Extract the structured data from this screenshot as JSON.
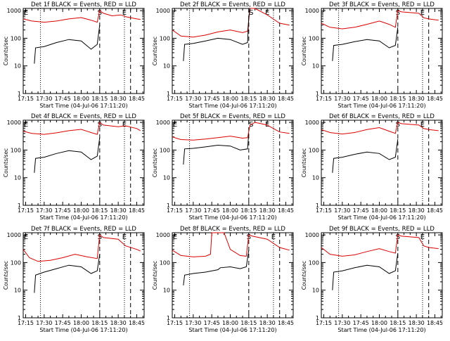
{
  "colors": {
    "events": "#000000",
    "lld": "#dd0000",
    "axis": "#000000",
    "background": "#ffffff"
  },
  "common": {
    "x_ticks": [
      "17:15",
      "17:30",
      "17:45",
      "18:00",
      "18:15",
      "18:30",
      "18:45"
    ],
    "y_ticks": [
      "1",
      "10",
      "100",
      "1000"
    ],
    "ylabel": "Counts/sec",
    "xlabel": "Start Time (04-Jul-06 17:11:20)"
  },
  "chart_data": [
    {
      "type": "line",
      "title": "Det 1f BLACK = Events, RED = LLD",
      "ylabel": "Counts/sec",
      "xlabel": "Start Time (04-Jul-06 17:11:20)",
      "xlim": [
        "17:13",
        "18:51"
      ],
      "ylim": [
        1,
        1200
      ],
      "y_scale": "log",
      "markers": {
        "S": "18:15",
        "E": "18:35",
        "E_left": "17:14"
      },
      "dotted_lines": [
        "17:27",
        "18:35"
      ],
      "dashed_lines": [
        "18:15",
        "18:40"
      ],
      "series": [
        {
          "role": "lld",
          "x": [
            "17:13",
            "17:20",
            "17:30",
            "17:40",
            "17:50",
            "18:00",
            "18:08",
            "18:13",
            "18:15",
            "18:18",
            "18:25",
            "18:32",
            "18:36",
            "18:45",
            "18:48"
          ],
          "y": [
            500,
            420,
            380,
            420,
            500,
            560,
            450,
            380,
            1000,
            800,
            650,
            700,
            600,
            500,
            480
          ]
        },
        {
          "role": "events",
          "x": [
            "17:22",
            "17:23",
            "17:30",
            "17:40",
            "17:50",
            "18:00",
            "18:08",
            "18:13",
            "18:15"
          ],
          "y": [
            12,
            45,
            50,
            70,
            90,
            80,
            40,
            60,
            300
          ]
        }
      ]
    },
    {
      "type": "line",
      "title": "Det 2f BLACK = Events, RED = LLD",
      "ylabel": "Counts/sec",
      "xlabel": "Start Time (04-Jul-06 17:11:20)",
      "xlim": [
        "17:13",
        "18:51"
      ],
      "ylim": [
        1,
        1200
      ],
      "y_scale": "log",
      "markers": {
        "S": "18:17",
        "E": "18:30"
      },
      "dotted_lines": [
        "17:27",
        "18:35"
      ],
      "dashed_lines": [
        "18:15",
        "18:40"
      ],
      "series": [
        {
          "role": "lld",
          "x": [
            "17:13",
            "17:20",
            "17:30",
            "17:40",
            "17:50",
            "18:00",
            "18:10",
            "18:14",
            "18:16",
            "18:20",
            "18:30",
            "18:40",
            "18:48"
          ],
          "y": [
            200,
            120,
            110,
            130,
            170,
            200,
            160,
            180,
            1200,
            1200,
            700,
            350,
            300
          ]
        },
        {
          "role": "events",
          "x": [
            "17:22",
            "17:23",
            "17:30",
            "17:40",
            "17:50",
            "18:00",
            "18:10",
            "18:14",
            "18:15",
            "18:16"
          ],
          "y": [
            15,
            60,
            65,
            80,
            100,
            90,
            60,
            70,
            600,
            1200
          ]
        }
      ]
    },
    {
      "type": "line",
      "title": "Det 3f BLACK = Events, RED = LLD",
      "ylabel": "Counts/sec",
      "xlabel": "Start Time (04-Jul-06 17:11:20)",
      "xlim": [
        "17:13",
        "18:51"
      ],
      "ylim": [
        1,
        1200
      ],
      "y_scale": "log",
      "markers": {
        "S": "18:15",
        "E": "18:35"
      },
      "dotted_lines": [
        "17:27",
        "18:35"
      ],
      "dashed_lines": [
        "18:15",
        "18:40"
      ],
      "series": [
        {
          "role": "lld",
          "x": [
            "17:13",
            "17:20",
            "17:30",
            "17:40",
            "17:50",
            "18:00",
            "18:08",
            "18:13",
            "18:15",
            "18:18",
            "18:32",
            "18:36",
            "18:40",
            "18:48"
          ],
          "y": [
            350,
            250,
            220,
            250,
            320,
            420,
            320,
            250,
            1000,
            900,
            800,
            550,
            500,
            450
          ]
        },
        {
          "role": "events",
          "x": [
            "17:22",
            "17:23",
            "17:30",
            "17:40",
            "17:50",
            "18:00",
            "18:08",
            "18:13",
            "18:15"
          ],
          "y": [
            15,
            55,
            60,
            75,
            90,
            80,
            45,
            55,
            250
          ]
        }
      ]
    },
    {
      "type": "line",
      "title": "Det 4f BLACK = Events, RED = LLD",
      "ylabel": "Counts/sec",
      "xlabel": "Start Time (04-Jul-06 17:11:20)",
      "xlim": [
        "17:13",
        "18:51"
      ],
      "ylim": [
        1,
        1200
      ],
      "y_scale": "log",
      "markers": {
        "S": "18:15",
        "E": "18:35",
        "E_left": "17:14"
      },
      "dotted_lines": [
        "17:27",
        "18:35"
      ],
      "dashed_lines": [
        "18:15",
        "18:40"
      ],
      "series": [
        {
          "role": "lld",
          "x": [
            "17:13",
            "17:20",
            "17:30",
            "17:40",
            "17:50",
            "18:00",
            "18:08",
            "18:13",
            "18:15",
            "18:18",
            "18:30",
            "18:36",
            "18:45",
            "18:48"
          ],
          "y": [
            480,
            400,
            370,
            420,
            500,
            560,
            430,
            370,
            1000,
            800,
            700,
            750,
            600,
            500
          ]
        },
        {
          "role": "events",
          "x": [
            "17:22",
            "17:23",
            "17:30",
            "17:40",
            "17:50",
            "18:00",
            "18:08",
            "18:13",
            "18:15"
          ],
          "y": [
            15,
            50,
            55,
            75,
            95,
            85,
            45,
            60,
            280
          ]
        }
      ]
    },
    {
      "type": "line",
      "title": "Det 5f BLACK = Events, RED = LLD",
      "ylabel": "Counts/sec",
      "xlabel": "Start Time (04-Jul-06 17:11:20)",
      "xlim": [
        "17:13",
        "18:51"
      ],
      "ylim": [
        1,
        1200
      ],
      "y_scale": "log",
      "markers": {
        "S": "18:17",
        "E": "18:30",
        "E_left": "17:14"
      },
      "dotted_lines": [
        "17:27",
        "18:35"
      ],
      "dashed_lines": [
        "18:15",
        "18:40"
      ],
      "series": [
        {
          "role": "lld",
          "x": [
            "17:13",
            "17:20",
            "17:30",
            "17:40",
            "17:50",
            "18:00",
            "18:10",
            "18:14",
            "18:16",
            "18:20",
            "18:25",
            "18:30",
            "18:40",
            "18:48"
          ],
          "y": [
            300,
            240,
            230,
            250,
            280,
            320,
            270,
            280,
            800,
            1000,
            900,
            800,
            450,
            400
          ]
        },
        {
          "role": "events",
          "x": [
            "17:22",
            "17:23",
            "17:30",
            "17:40",
            "17:50",
            "18:00",
            "18:08",
            "18:14",
            "18:15"
          ],
          "y": [
            30,
            110,
            115,
            130,
            150,
            140,
            100,
            110,
            400
          ]
        }
      ]
    },
    {
      "type": "line",
      "title": "Det 6f BLACK = Events, RED = LLD",
      "ylabel": "Counts/sec",
      "xlabel": "Start Time (04-Jul-06 17:11:20)",
      "xlim": [
        "17:13",
        "18:51"
      ],
      "ylim": [
        1,
        1200
      ],
      "y_scale": "log",
      "markers": {
        "S": "18:15",
        "E": "18:35"
      },
      "dotted_lines": [
        "17:27",
        "18:35"
      ],
      "dashed_lines": [
        "18:15",
        "18:40"
      ],
      "series": [
        {
          "role": "lld",
          "x": [
            "17:13",
            "17:20",
            "17:30",
            "17:40",
            "17:50",
            "18:00",
            "18:08",
            "18:13",
            "18:15",
            "18:18",
            "18:32",
            "18:36",
            "18:40",
            "18:48"
          ],
          "y": [
            550,
            430,
            380,
            430,
            550,
            650,
            480,
            400,
            1000,
            900,
            800,
            600,
            550,
            500
          ]
        },
        {
          "role": "events",
          "x": [
            "17:22",
            "17:23",
            "17:30",
            "17:40",
            "17:50",
            "18:00",
            "18:08",
            "18:13",
            "18:15"
          ],
          "y": [
            15,
            50,
            55,
            70,
            85,
            75,
            45,
            55,
            250
          ]
        }
      ]
    },
    {
      "type": "line",
      "title": "Det 7f BLACK = Events, RED = LLD",
      "ylabel": "Counts/sec",
      "xlabel": "Start Time (04-Jul-06 17:11:20)",
      "xlim": [
        "17:13",
        "18:51"
      ],
      "ylim": [
        1,
        1200
      ],
      "y_scale": "log",
      "markers": {
        "S": "18:15",
        "E": "18:35",
        "E_left": "17:14"
      },
      "dotted_lines": [
        "17:27",
        "18:35"
      ],
      "dashed_lines": [
        "18:15",
        "18:40"
      ],
      "series": [
        {
          "role": "lld",
          "x": [
            "17:13",
            "17:18",
            "17:25",
            "17:35",
            "17:45",
            "17:55",
            "18:05",
            "18:13",
            "18:15",
            "18:18",
            "18:30",
            "18:36",
            "18:45",
            "18:48"
          ],
          "y": [
            300,
            150,
            110,
            120,
            150,
            200,
            160,
            140,
            1000,
            800,
            700,
            400,
            300,
            260
          ]
        },
        {
          "role": "events",
          "x": [
            "17:22",
            "17:23",
            "17:30",
            "17:40",
            "17:50",
            "18:00",
            "18:08",
            "18:13",
            "18:15"
          ],
          "y": [
            8,
            35,
            45,
            60,
            80,
            70,
            40,
            50,
            200
          ]
        }
      ]
    },
    {
      "type": "line",
      "title": "Det 8f BLACK = Events, RED = LLD",
      "ylabel": "Counts/sec",
      "xlabel": "Start Time (04-Jul-06 17:11:20)",
      "xlim": [
        "17:13",
        "18:51"
      ],
      "ylim": [
        1,
        1200
      ],
      "y_scale": "log",
      "markers": {
        "S": "18:15",
        "E": "18:35",
        "E_left": "17:14"
      },
      "dotted_lines": [
        "17:27",
        "18:35"
      ],
      "dashed_lines": [
        "18:15",
        "18:40"
      ],
      "series": [
        {
          "role": "lld",
          "x": [
            "17:13",
            "17:20",
            "17:30",
            "17:40",
            "17:44",
            "17:45",
            "17:55",
            "18:00",
            "18:08",
            "18:13",
            "18:15",
            "18:18",
            "18:30",
            "18:40",
            "18:48"
          ],
          "y": [
            280,
            180,
            160,
            170,
            200,
            1200,
            1200,
            300,
            180,
            170,
            1000,
            900,
            700,
            350,
            280
          ]
        },
        {
          "role": "events",
          "x": [
            "17:22",
            "17:23",
            "17:30",
            "17:40",
            "17:50",
            "17:52",
            "18:00",
            "18:08",
            "18:13",
            "18:15"
          ],
          "y": [
            15,
            35,
            40,
            45,
            55,
            65,
            70,
            60,
            70,
            280
          ]
        }
      ]
    },
    {
      "type": "line",
      "title": "Det 9f BLACK = Events, RED = LLD",
      "ylabel": "Counts/sec",
      "xlabel": "Start Time (04-Jul-06 17:11:20)",
      "xlim": [
        "17:13",
        "18:51"
      ],
      "ylim": [
        1,
        1200
      ],
      "y_scale": "log",
      "markers": {
        "S": "18:15",
        "E": "18:35"
      },
      "dotted_lines": [
        "17:27",
        "18:35"
      ],
      "dashed_lines": [
        "18:15",
        "18:40"
      ],
      "series": [
        {
          "role": "lld",
          "x": [
            "17:13",
            "17:20",
            "17:30",
            "17:40",
            "17:50",
            "18:00",
            "18:08",
            "18:13",
            "18:15",
            "18:18",
            "18:32",
            "18:36",
            "18:40",
            "18:48"
          ],
          "y": [
            350,
            200,
            170,
            190,
            250,
            320,
            250,
            220,
            1000,
            900,
            800,
            400,
            350,
            320
          ]
        },
        {
          "role": "events",
          "x": [
            "17:22",
            "17:23",
            "17:30",
            "17:40",
            "17:50",
            "18:00",
            "18:08",
            "18:13",
            "18:15"
          ],
          "y": [
            10,
            45,
            50,
            65,
            80,
            70,
            40,
            50,
            220
          ]
        }
      ]
    }
  ]
}
